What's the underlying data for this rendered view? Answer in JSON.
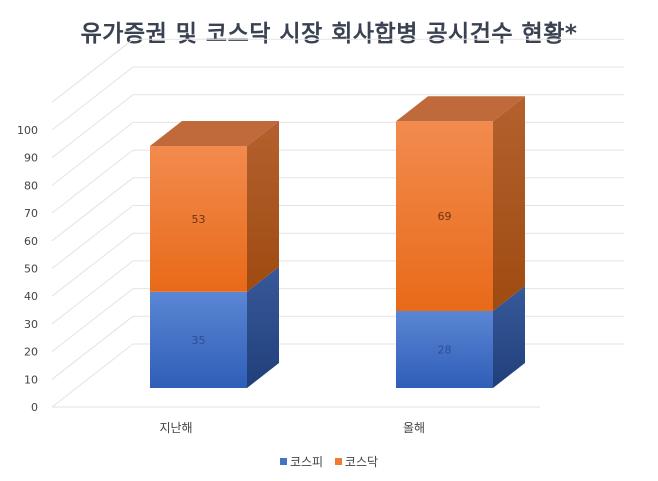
{
  "title": "유가증권 및 코스닥 시장 회사합병 공시건수 현황*",
  "legend": [
    {
      "label": "코스피",
      "color": "#4472c4"
    },
    {
      "label": "코스닥",
      "color": "#ed7d31"
    }
  ],
  "chart_data": {
    "type": "bar",
    "stacked": true,
    "style": "3d-column",
    "title": "유가증권 및 코스닥 시장 회사합병 공시건수 현황*",
    "categories": [
      "지난해",
      "올해"
    ],
    "series": [
      {
        "name": "코스피",
        "values": [
          35,
          28
        ],
        "color": "#4472c4"
      },
      {
        "name": "코스닥",
        "values": [
          53,
          69
        ],
        "color": "#ed7d31"
      }
    ],
    "xlabel": "",
    "ylabel": "",
    "ylim": [
      0,
      100
    ],
    "yticks": [
      0,
      10,
      20,
      30,
      40,
      50,
      60,
      70,
      80,
      90,
      100
    ],
    "grid": true,
    "legend_position": "bottom"
  }
}
